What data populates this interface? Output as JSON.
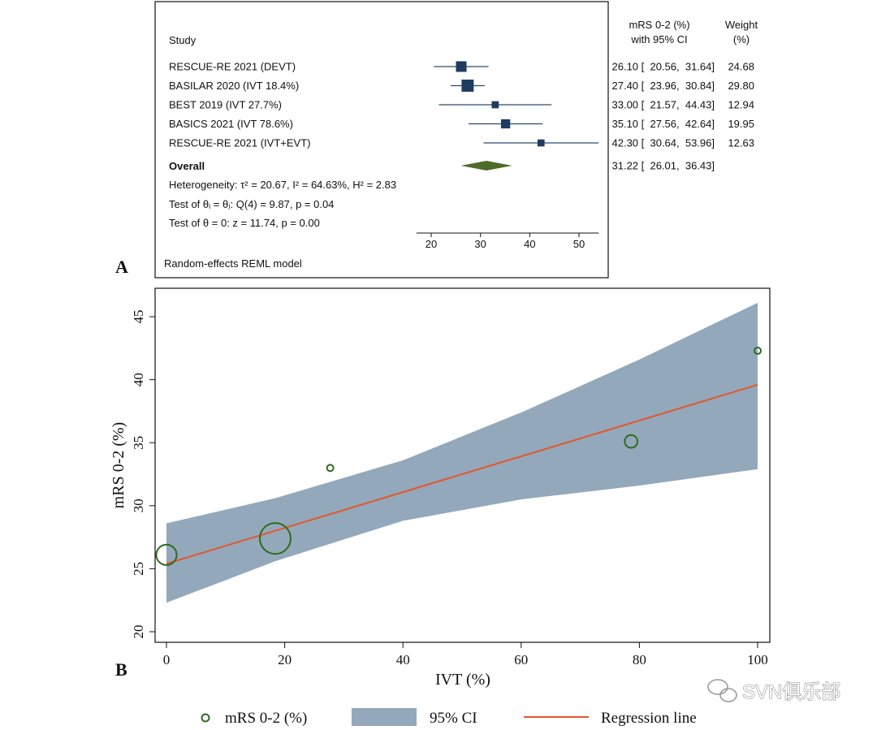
{
  "colors": {
    "forest_square": "#1f3c5f",
    "forest_line": "#2a4a70",
    "diamond": "#4f6b2a",
    "ci_band": "#93a8bb",
    "regression": "#e2572b",
    "marker": "#2e6b1e",
    "axis": "#111111"
  },
  "panel_a": {
    "label": "A",
    "header_study": "Study",
    "header_effect_line1": "mRS 0-2 (%)",
    "header_effect_line2": "with 95% CI",
    "header_weight_line1": "Weight",
    "header_weight_line2": "(%)",
    "overall_label": "Overall",
    "heterogeneity_text": "Heterogeneity: τ² = 20.67, I² = 64.63%, H² = 2.83",
    "test_theta_i_text": "Test of θᵢ = θⱼ: Q(4) = 9.87, p = 0.04",
    "test_theta_0_text": "Test of θ = 0: z = 11.74, p = 0.00",
    "model_text": "Random-effects REML model"
  },
  "panel_b": {
    "label": "B"
  },
  "watermark": {
    "text": "SVN俱乐部"
  },
  "chart_data": [
    {
      "type": "forest",
      "xlim": [
        17,
        54
      ],
      "xticks": [
        20,
        30,
        40,
        50
      ],
      "studies": [
        {
          "name": "RESCUE-RE 2021 (DEVT)",
          "estimate": 26.1,
          "ci_low": 20.56,
          "ci_high": 31.64,
          "effect_text": "26.10 [  20.56,  31.64]",
          "weight": 24.68,
          "weight_text": "24.68"
        },
        {
          "name": "BASILAR 2020  (IVT 18.4%)",
          "estimate": 27.4,
          "ci_low": 23.96,
          "ci_high": 30.84,
          "effect_text": "27.40 [  23.96,  30.84]",
          "weight": 29.8,
          "weight_text": "29.80"
        },
        {
          "name": "BEST 2019  (IVT 27.7%)",
          "estimate": 33.0,
          "ci_low": 21.57,
          "ci_high": 44.43,
          "effect_text": "33.00 [  21.57,  44.43]",
          "weight": 12.94,
          "weight_text": "12.94"
        },
        {
          "name": "BASICS 2021  (IVT 78.6%)",
          "estimate": 35.1,
          "ci_low": 27.56,
          "ci_high": 42.64,
          "effect_text": "35.10 [  27.56,  42.64]",
          "weight": 19.95,
          "weight_text": "19.95"
        },
        {
          "name": "RESCUE-RE 2021  (IVT+EVT)",
          "estimate": 42.3,
          "ci_low": 30.64,
          "ci_high": 53.96,
          "effect_text": "42.30 [  30.64,  53.96]",
          "weight": 12.63,
          "weight_text": "12.63"
        }
      ],
      "overall": {
        "estimate": 31.22,
        "ci_low": 26.01,
        "ci_high": 36.43,
        "effect_text": "31.22 [  26.01,  36.43]"
      }
    },
    {
      "type": "scatter",
      "xlabel": "IVT (%)",
      "ylabel": "mRS 0-2 (%)",
      "xlim": [
        -2,
        101
      ],
      "ylim": [
        19.3,
        47.2
      ],
      "xticks": [
        0,
        20,
        40,
        60,
        80,
        100
      ],
      "yticks": [
        20,
        25,
        30,
        35,
        40,
        45
      ],
      "points": [
        {
          "x": 0,
          "y": 26.1,
          "weight": 24.68
        },
        {
          "x": 18.4,
          "y": 27.4,
          "weight": 29.8
        },
        {
          "x": 27.7,
          "y": 33.0,
          "weight": 12.94
        },
        {
          "x": 78.6,
          "y": 35.1,
          "weight": 19.95
        },
        {
          "x": 100,
          "y": 42.3,
          "weight": 12.63
        }
      ],
      "regression_line": {
        "x": [
          0,
          100
        ],
        "y": [
          25.4,
          39.6
        ]
      },
      "ci_band": {
        "x": [
          0,
          18.4,
          40,
          60,
          80,
          100
        ],
        "upper": [
          28.6,
          30.6,
          33.6,
          37.4,
          41.6,
          46.1
        ],
        "lower": [
          22.3,
          25.6,
          28.8,
          30.5,
          31.6,
          32.9
        ]
      },
      "legend": [
        {
          "key": "marker",
          "label": "mRS 0-2 (%)"
        },
        {
          "key": "band",
          "label": "95% CI"
        },
        {
          "key": "line",
          "label": "Regression line"
        }
      ]
    }
  ]
}
